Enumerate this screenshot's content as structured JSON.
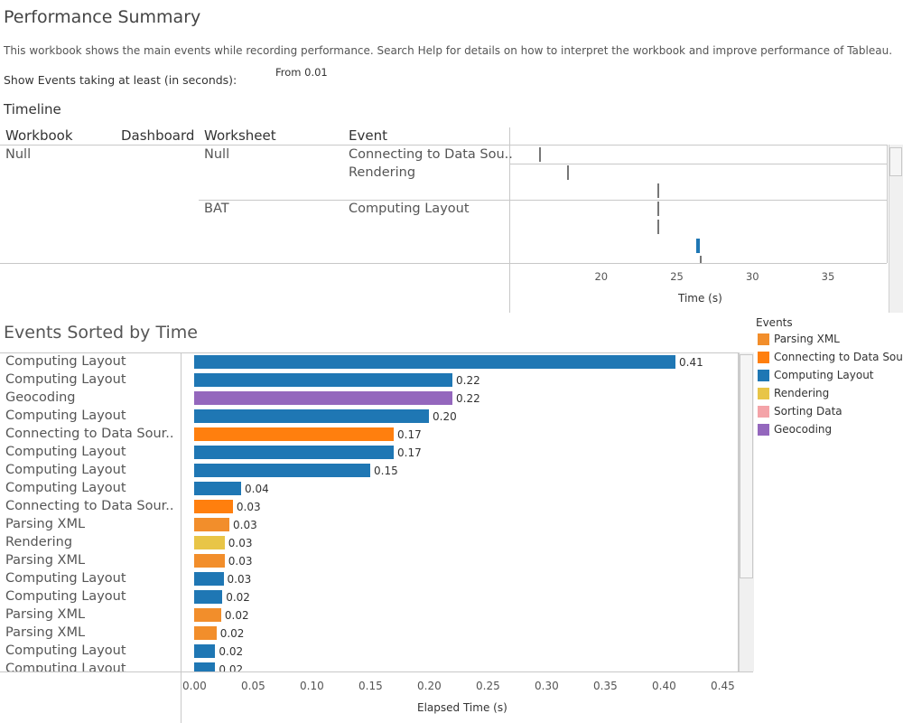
{
  "page": {
    "title": "Performance Summary",
    "description": "This workbook shows the main events while recording performance. Search Help for details on how to interpret the workbook and improve performance of Tableau.",
    "filter_label": "Show Events taking at least (in seconds):",
    "filter_value": "From 0.01"
  },
  "timeline": {
    "heading": "Timeline",
    "columns": [
      "Workbook",
      "Dashboard",
      "Worksheet",
      "Event"
    ],
    "rows": [
      {
        "workbook": "Null",
        "worksheet": "Null",
        "event": "Connecting to Data Sou.."
      },
      {
        "workbook": "",
        "worksheet": "",
        "event": "Rendering"
      },
      {
        "workbook": "",
        "worksheet": "BAT",
        "event": "Computing Layout"
      }
    ],
    "axis_title": "Time (s)",
    "ticks": [
      20,
      25,
      30,
      35
    ],
    "axis_range": [
      14.0,
      38.9
    ],
    "marks": [
      {
        "t": 16.0,
        "color": "#777777"
      },
      {
        "t": 17.8,
        "color": "#777777"
      },
      {
        "t": 23.8,
        "color": "#777777"
      },
      {
        "t": 23.8,
        "color": "#777777"
      },
      {
        "t": 23.8,
        "color": "#777777"
      },
      {
        "t": 26.4,
        "color": "#1f77b4"
      },
      {
        "t": 26.6,
        "color": "#777777"
      }
    ]
  },
  "events": {
    "heading": "Events Sorted by Time",
    "legend_title": "Events",
    "legend": [
      {
        "label": "Parsing XML",
        "color": "#f28e2b"
      },
      {
        "label": "Connecting to Data Sou..",
        "color": "#ff7f0e"
      },
      {
        "label": "Computing Layout",
        "color": "#1f77b4"
      },
      {
        "label": "Rendering",
        "color": "#e8c547"
      },
      {
        "label": "Sorting Data",
        "color": "#f4a3a8"
      },
      {
        "label": "Geocoding",
        "color": "#9467bd"
      }
    ]
  },
  "chart_data": {
    "type": "bar",
    "orientation": "horizontal",
    "xlabel": "Elapsed Time (s)",
    "xlim": [
      0,
      0.46
    ],
    "ticks": [
      "0.00",
      "0.05",
      "0.10",
      "0.15",
      "0.20",
      "0.25",
      "0.30",
      "0.35",
      "0.40",
      "0.45"
    ],
    "bars": [
      {
        "category": "Computing Layout",
        "value": 0.41,
        "label": "0.41",
        "color": "#1f77b4"
      },
      {
        "category": "Computing Layout",
        "value": 0.22,
        "label": "0.22",
        "color": "#1f77b4"
      },
      {
        "category": "Geocoding",
        "value": 0.22,
        "label": "0.22",
        "color": "#9467bd"
      },
      {
        "category": "Computing Layout",
        "value": 0.2,
        "label": "0.20",
        "color": "#1f77b4"
      },
      {
        "category": "Connecting to Data Sour..",
        "value": 0.17,
        "label": "0.17",
        "color": "#ff7f0e"
      },
      {
        "category": "Computing Layout",
        "value": 0.17,
        "label": "0.17",
        "color": "#1f77b4"
      },
      {
        "category": "Computing Layout",
        "value": 0.15,
        "label": "0.15",
        "color": "#1f77b4"
      },
      {
        "category": "Computing Layout",
        "value": 0.04,
        "label": "0.04",
        "color": "#1f77b4"
      },
      {
        "category": "Connecting to Data Sour..",
        "value": 0.033,
        "label": "0.03",
        "color": "#ff7f0e"
      },
      {
        "category": "Parsing XML",
        "value": 0.03,
        "label": "0.03",
        "color": "#f28e2b"
      },
      {
        "category": "Rendering",
        "value": 0.026,
        "label": "0.03",
        "color": "#e8c547"
      },
      {
        "category": "Parsing XML",
        "value": 0.026,
        "label": "0.03",
        "color": "#f28e2b"
      },
      {
        "category": "Computing Layout",
        "value": 0.025,
        "label": "0.03",
        "color": "#1f77b4"
      },
      {
        "category": "Computing Layout",
        "value": 0.024,
        "label": "0.02",
        "color": "#1f77b4"
      },
      {
        "category": "Parsing XML",
        "value": 0.023,
        "label": "0.02",
        "color": "#f28e2b"
      },
      {
        "category": "Parsing XML",
        "value": 0.019,
        "label": "0.02",
        "color": "#f28e2b"
      },
      {
        "category": "Computing Layout",
        "value": 0.018,
        "label": "0.02",
        "color": "#1f77b4"
      },
      {
        "category": "Computing Layout",
        "value": 0.018,
        "label": "0.02",
        "color": "#1f77b4"
      }
    ]
  }
}
